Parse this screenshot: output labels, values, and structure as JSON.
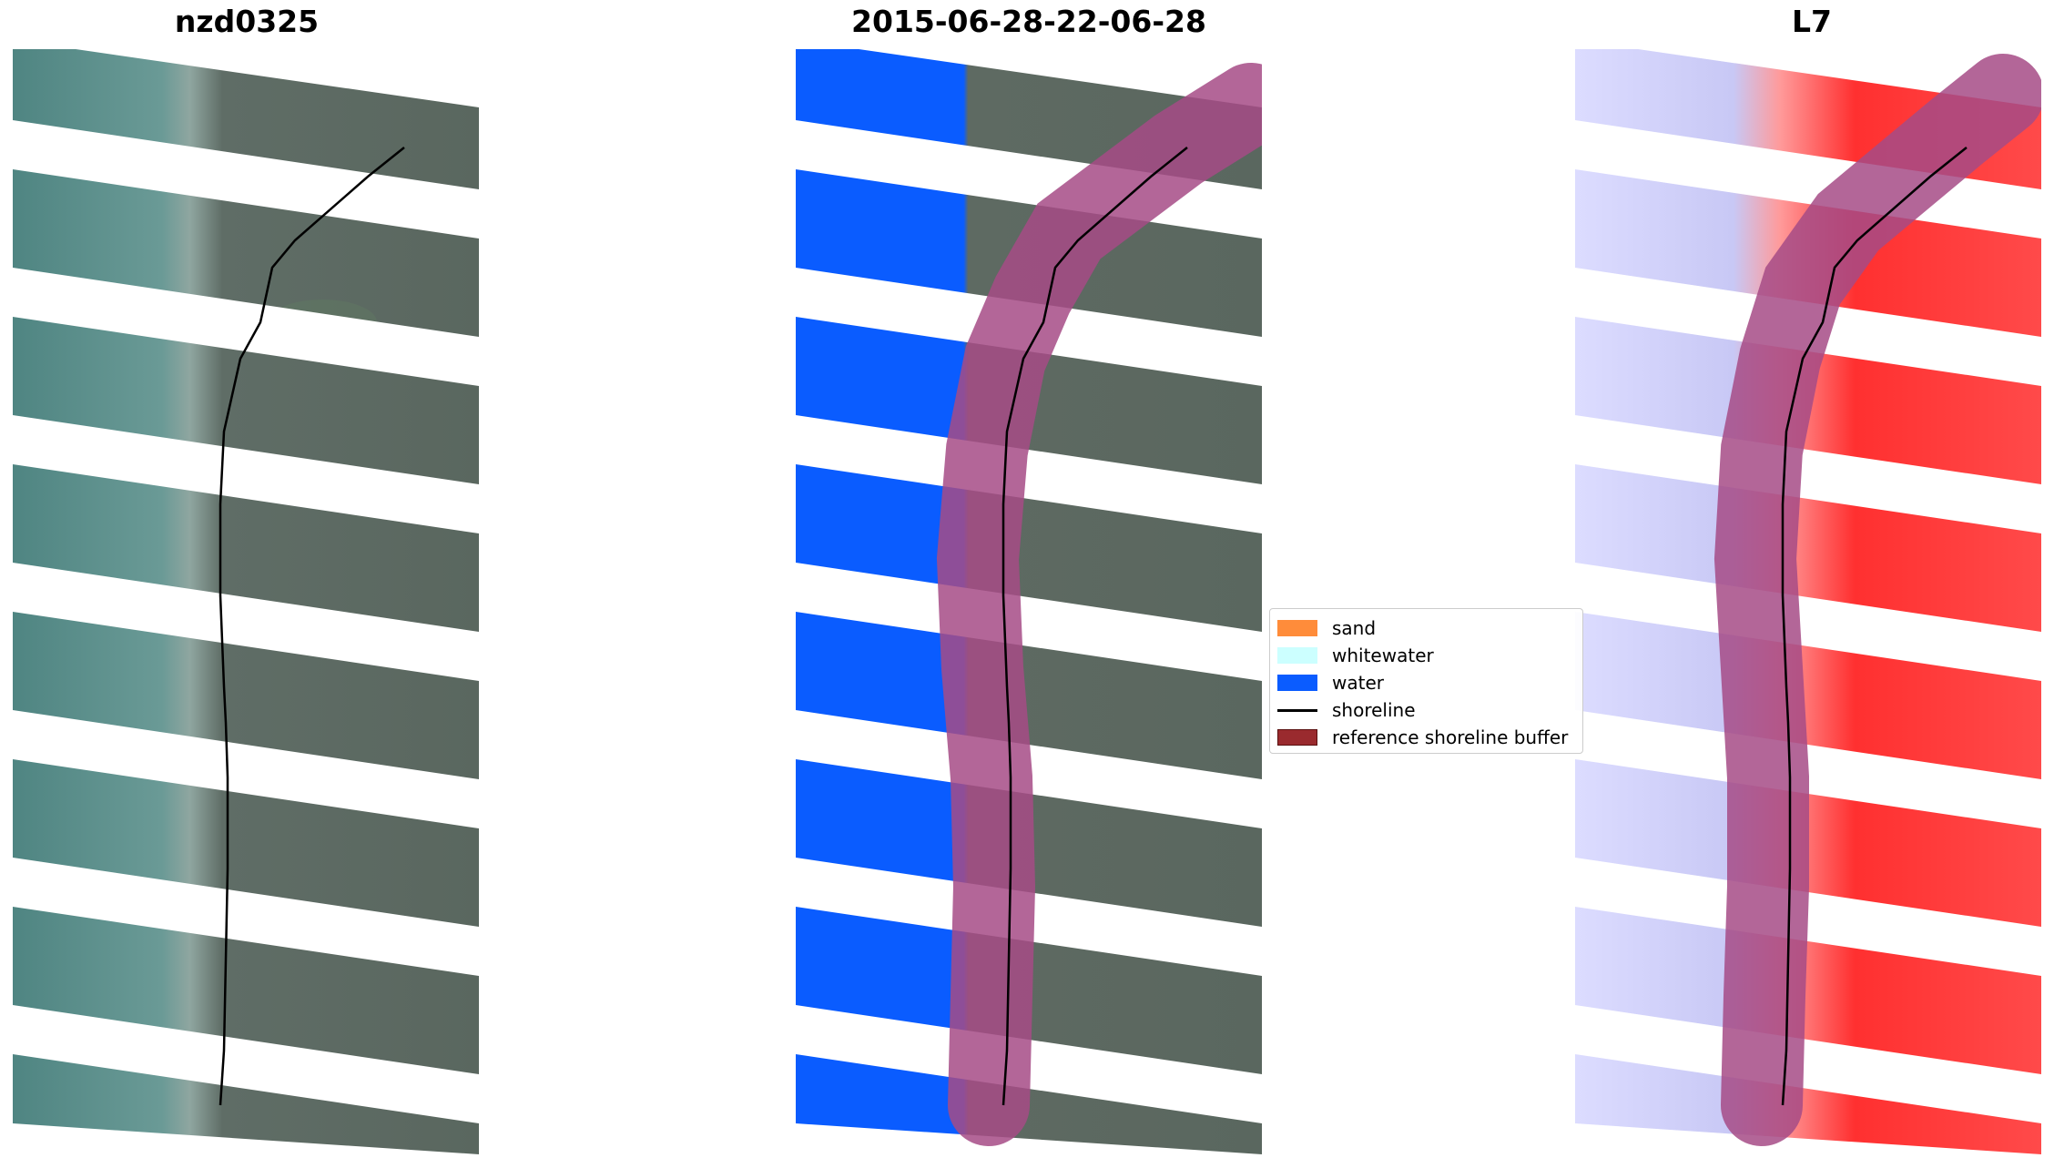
{
  "panels": [
    {
      "title": "nzd0325",
      "type": "rgb-image"
    },
    {
      "title": "2015-06-28-22-06-28",
      "type": "classified-image"
    },
    {
      "title": "L7",
      "type": "index-image"
    }
  ],
  "legend": {
    "items": [
      {
        "label": "sand",
        "kind": "patch",
        "color": "#ff8c3a"
      },
      {
        "label": "whitewater",
        "kind": "patch",
        "color": "#ccffff"
      },
      {
        "label": "water",
        "kind": "patch",
        "color": "#0a5cff"
      },
      {
        "label": "shoreline",
        "kind": "line",
        "color": "#000000"
      },
      {
        "label": "reference shoreline buffer",
        "kind": "patch",
        "color": "#9a2a2e"
      }
    ]
  },
  "colors": {
    "sea": "#5b8f8e",
    "land": "#5e6a62",
    "water_class": "#0a5cff",
    "buffer": "#a64b86",
    "index_water": "#dcdcff",
    "index_land": "#ff3030"
  }
}
